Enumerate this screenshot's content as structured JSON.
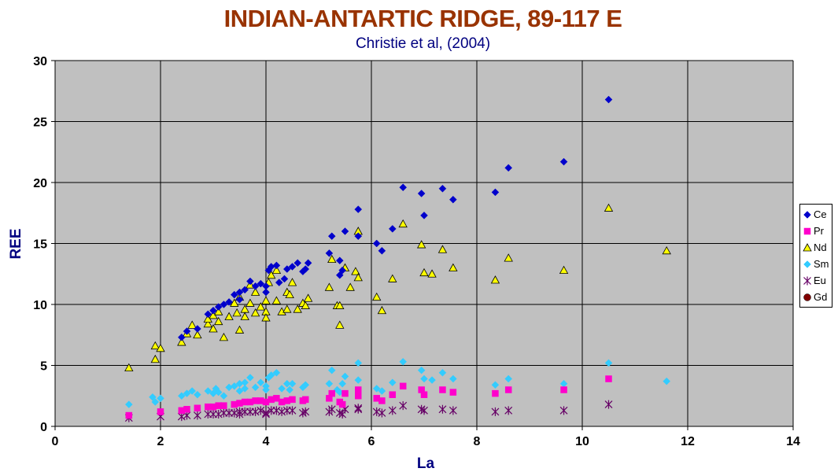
{
  "chart_data": {
    "type": "scatter",
    "title": "INDIAN-ANTARTIC RIDGE, 89-117 E",
    "subtitle": "Christie et al, (2004)",
    "xlabel": "La",
    "ylabel": "REE",
    "xlim": [
      0,
      14
    ],
    "ylim": [
      0,
      30
    ],
    "xticks": [
      0,
      2,
      4,
      6,
      8,
      10,
      12,
      14
    ],
    "yticks": [
      0,
      5,
      10,
      15,
      20,
      25,
      30
    ],
    "grid": true,
    "plot_background": "#c0c0c0",
    "legend_position": "right",
    "series": [
      {
        "name": "Ce",
        "marker": "diamond",
        "color": "#0000cc",
        "points": [
          [
            2.4,
            7.3
          ],
          [
            2.5,
            7.8
          ],
          [
            2.7,
            8.0
          ],
          [
            2.9,
            9.2
          ],
          [
            3.0,
            9.5
          ],
          [
            3.1,
            9.8
          ],
          [
            3.2,
            10.0
          ],
          [
            3.3,
            10.2
          ],
          [
            3.4,
            10.8
          ],
          [
            3.5,
            11.0
          ],
          [
            3.5,
            10.4
          ],
          [
            3.6,
            11.2
          ],
          [
            3.7,
            11.9
          ],
          [
            3.8,
            11.5
          ],
          [
            3.9,
            11.7
          ],
          [
            4.0,
            11.5
          ],
          [
            4.0,
            11.0
          ],
          [
            4.05,
            12.8
          ],
          [
            4.1,
            13.1
          ],
          [
            4.2,
            13.2
          ],
          [
            4.25,
            11.8
          ],
          [
            4.35,
            12.1
          ],
          [
            4.4,
            12.9
          ],
          [
            4.5,
            13.1
          ],
          [
            4.6,
            13.4
          ],
          [
            4.7,
            12.7
          ],
          [
            4.75,
            12.9
          ],
          [
            4.8,
            13.4
          ],
          [
            5.2,
            14.2
          ],
          [
            5.25,
            15.6
          ],
          [
            5.4,
            13.6
          ],
          [
            5.4,
            12.4
          ],
          [
            5.45,
            12.8
          ],
          [
            5.5,
            16.0
          ],
          [
            5.75,
            17.8
          ],
          [
            5.75,
            15.6
          ],
          [
            6.1,
            15.0
          ],
          [
            6.2,
            14.4
          ],
          [
            6.4,
            16.2
          ],
          [
            6.6,
            19.6
          ],
          [
            6.95,
            19.1
          ],
          [
            7.0,
            17.3
          ],
          [
            7.35,
            19.5
          ],
          [
            7.55,
            18.6
          ],
          [
            8.35,
            19.2
          ],
          [
            8.6,
            21.2
          ],
          [
            9.65,
            21.7
          ],
          [
            10.5,
            26.8
          ]
        ]
      },
      {
        "name": "Pr",
        "marker": "square",
        "color": "#ff00cc",
        "points": [
          [
            1.4,
            0.9
          ],
          [
            2.0,
            1.2
          ],
          [
            2.4,
            1.3
          ],
          [
            2.5,
            1.4
          ],
          [
            2.7,
            1.5
          ],
          [
            2.9,
            1.6
          ],
          [
            3.0,
            1.6
          ],
          [
            3.1,
            1.7
          ],
          [
            3.2,
            1.7
          ],
          [
            3.4,
            1.8
          ],
          [
            3.5,
            1.9
          ],
          [
            3.6,
            2.0
          ],
          [
            3.7,
            2.0
          ],
          [
            3.8,
            2.1
          ],
          [
            3.9,
            2.1
          ],
          [
            4.0,
            2.0
          ],
          [
            4.1,
            2.2
          ],
          [
            4.2,
            2.3
          ],
          [
            4.3,
            2.0
          ],
          [
            4.4,
            2.1
          ],
          [
            4.5,
            2.2
          ],
          [
            4.7,
            2.1
          ],
          [
            4.75,
            2.2
          ],
          [
            5.2,
            2.3
          ],
          [
            5.25,
            2.7
          ],
          [
            5.4,
            2.0
          ],
          [
            5.45,
            1.8
          ],
          [
            5.5,
            2.7
          ],
          [
            5.75,
            2.5
          ],
          [
            5.75,
            3.0
          ],
          [
            6.1,
            2.3
          ],
          [
            6.2,
            2.1
          ],
          [
            6.4,
            2.6
          ],
          [
            6.6,
            3.3
          ],
          [
            6.95,
            3.0
          ],
          [
            7.0,
            2.6
          ],
          [
            7.35,
            3.0
          ],
          [
            7.55,
            2.8
          ],
          [
            8.35,
            2.7
          ],
          [
            8.6,
            3.0
          ],
          [
            9.65,
            3.0
          ],
          [
            10.5,
            3.9
          ]
        ]
      },
      {
        "name": "Nd",
        "marker": "triangle",
        "color": "#ffff00",
        "points": [
          [
            1.4,
            4.8
          ],
          [
            1.9,
            6.6
          ],
          [
            1.9,
            5.5
          ],
          [
            2.0,
            6.4
          ],
          [
            2.4,
            6.9
          ],
          [
            2.5,
            7.6
          ],
          [
            2.6,
            8.3
          ],
          [
            2.7,
            7.5
          ],
          [
            2.9,
            8.4
          ],
          [
            2.9,
            8.8
          ],
          [
            3.0,
            8.0
          ],
          [
            3.0,
            9.1
          ],
          [
            3.1,
            8.6
          ],
          [
            3.1,
            9.4
          ],
          [
            3.2,
            7.3
          ],
          [
            3.3,
            9.0
          ],
          [
            3.4,
            10.1
          ],
          [
            3.45,
            9.3
          ],
          [
            3.5,
            10.6
          ],
          [
            3.5,
            7.9
          ],
          [
            3.6,
            9.6
          ],
          [
            3.6,
            9.0
          ],
          [
            3.7,
            10.1
          ],
          [
            3.7,
            11.6
          ],
          [
            3.8,
            9.3
          ],
          [
            3.8,
            11.0
          ],
          [
            3.9,
            9.8
          ],
          [
            4.0,
            10.3
          ],
          [
            4.0,
            9.4
          ],
          [
            4.0,
            8.9
          ],
          [
            4.05,
            11.8
          ],
          [
            4.1,
            12.4
          ],
          [
            4.2,
            10.3
          ],
          [
            4.2,
            12.8
          ],
          [
            4.3,
            9.4
          ],
          [
            4.4,
            11.0
          ],
          [
            4.4,
            9.6
          ],
          [
            4.45,
            10.8
          ],
          [
            4.5,
            11.8
          ],
          [
            4.6,
            9.6
          ],
          [
            4.7,
            10.1
          ],
          [
            4.75,
            9.9
          ],
          [
            4.8,
            10.5
          ],
          [
            5.2,
            11.4
          ],
          [
            5.25,
            13.7
          ],
          [
            5.35,
            9.9
          ],
          [
            5.4,
            9.9
          ],
          [
            5.4,
            8.3
          ],
          [
            5.5,
            13.0
          ],
          [
            5.6,
            11.4
          ],
          [
            5.7,
            12.7
          ],
          [
            5.75,
            12.2
          ],
          [
            5.75,
            16.0
          ],
          [
            6.1,
            10.6
          ],
          [
            6.2,
            9.5
          ],
          [
            6.4,
            12.1
          ],
          [
            6.6,
            16.6
          ],
          [
            6.95,
            14.9
          ],
          [
            7.0,
            12.6
          ],
          [
            7.15,
            12.5
          ],
          [
            7.35,
            14.5
          ],
          [
            7.55,
            13.0
          ],
          [
            8.35,
            12.0
          ],
          [
            8.6,
            13.8
          ],
          [
            9.65,
            12.8
          ],
          [
            10.5,
            17.9
          ],
          [
            11.6,
            14.4
          ]
        ]
      },
      {
        "name": "Sm",
        "marker": "diamond",
        "color": "#33ccff",
        "points": [
          [
            1.4,
            1.8
          ],
          [
            1.85,
            2.4
          ],
          [
            1.9,
            2.0
          ],
          [
            2.0,
            2.3
          ],
          [
            2.4,
            2.5
          ],
          [
            2.5,
            2.7
          ],
          [
            2.6,
            2.9
          ],
          [
            2.7,
            2.6
          ],
          [
            2.9,
            2.9
          ],
          [
            3.0,
            2.7
          ],
          [
            3.05,
            3.1
          ],
          [
            3.1,
            2.8
          ],
          [
            3.2,
            2.5
          ],
          [
            3.3,
            3.2
          ],
          [
            3.4,
            3.3
          ],
          [
            3.5,
            3.5
          ],
          [
            3.5,
            2.9
          ],
          [
            3.6,
            3.6
          ],
          [
            3.6,
            3.1
          ],
          [
            3.7,
            4.0
          ],
          [
            3.8,
            3.2
          ],
          [
            3.9,
            3.6
          ],
          [
            4.0,
            3.3
          ],
          [
            4.0,
            3.0
          ],
          [
            4.05,
            4.0
          ],
          [
            4.1,
            4.2
          ],
          [
            4.2,
            4.4
          ],
          [
            4.3,
            3.1
          ],
          [
            4.4,
            3.5
          ],
          [
            4.45,
            3.0
          ],
          [
            4.5,
            3.5
          ],
          [
            4.7,
            3.2
          ],
          [
            4.75,
            3.4
          ],
          [
            5.2,
            3.5
          ],
          [
            5.25,
            4.6
          ],
          [
            5.35,
            3.0
          ],
          [
            5.4,
            2.8
          ],
          [
            5.45,
            3.5
          ],
          [
            5.5,
            4.1
          ],
          [
            5.75,
            3.8
          ],
          [
            5.75,
            5.2
          ],
          [
            6.1,
            3.1
          ],
          [
            6.2,
            2.9
          ],
          [
            6.4,
            3.6
          ],
          [
            6.6,
            5.3
          ],
          [
            6.95,
            4.6
          ],
          [
            7.0,
            3.9
          ],
          [
            7.15,
            3.8
          ],
          [
            7.35,
            4.4
          ],
          [
            7.55,
            3.9
          ],
          [
            8.35,
            3.4
          ],
          [
            8.6,
            3.9
          ],
          [
            9.65,
            3.5
          ],
          [
            10.5,
            5.2
          ],
          [
            11.6,
            3.7
          ]
        ]
      },
      {
        "name": "Eu",
        "marker": "star",
        "color": "#660066",
        "points": [
          [
            1.4,
            0.7
          ],
          [
            2.0,
            0.8
          ],
          [
            2.4,
            0.8
          ],
          [
            2.5,
            0.9
          ],
          [
            2.7,
            0.9
          ],
          [
            2.9,
            1.0
          ],
          [
            3.0,
            1.0
          ],
          [
            3.1,
            1.0
          ],
          [
            3.2,
            1.1
          ],
          [
            3.3,
            1.1
          ],
          [
            3.4,
            1.1
          ],
          [
            3.5,
            1.2
          ],
          [
            3.5,
            1.0
          ],
          [
            3.6,
            1.2
          ],
          [
            3.7,
            1.2
          ],
          [
            3.8,
            1.2
          ],
          [
            3.9,
            1.3
          ],
          [
            4.0,
            1.1
          ],
          [
            4.0,
            1.0
          ],
          [
            4.1,
            1.3
          ],
          [
            4.2,
            1.3
          ],
          [
            4.3,
            1.2
          ],
          [
            4.4,
            1.3
          ],
          [
            4.5,
            1.3
          ],
          [
            4.7,
            1.1
          ],
          [
            4.75,
            1.2
          ],
          [
            5.2,
            1.2
          ],
          [
            5.25,
            1.4
          ],
          [
            5.4,
            1.1
          ],
          [
            5.45,
            1.0
          ],
          [
            5.5,
            1.4
          ],
          [
            5.75,
            1.4
          ],
          [
            5.75,
            1.5
          ],
          [
            6.1,
            1.2
          ],
          [
            6.2,
            1.1
          ],
          [
            6.4,
            1.3
          ],
          [
            6.6,
            1.7
          ],
          [
            6.95,
            1.4
          ],
          [
            7.0,
            1.3
          ],
          [
            7.35,
            1.4
          ],
          [
            7.55,
            1.3
          ],
          [
            8.35,
            1.2
          ],
          [
            8.6,
            1.3
          ],
          [
            9.65,
            1.3
          ],
          [
            10.5,
            1.8
          ]
        ]
      },
      {
        "name": "Gd",
        "marker": "circle",
        "color": "#800000",
        "points": []
      }
    ]
  }
}
